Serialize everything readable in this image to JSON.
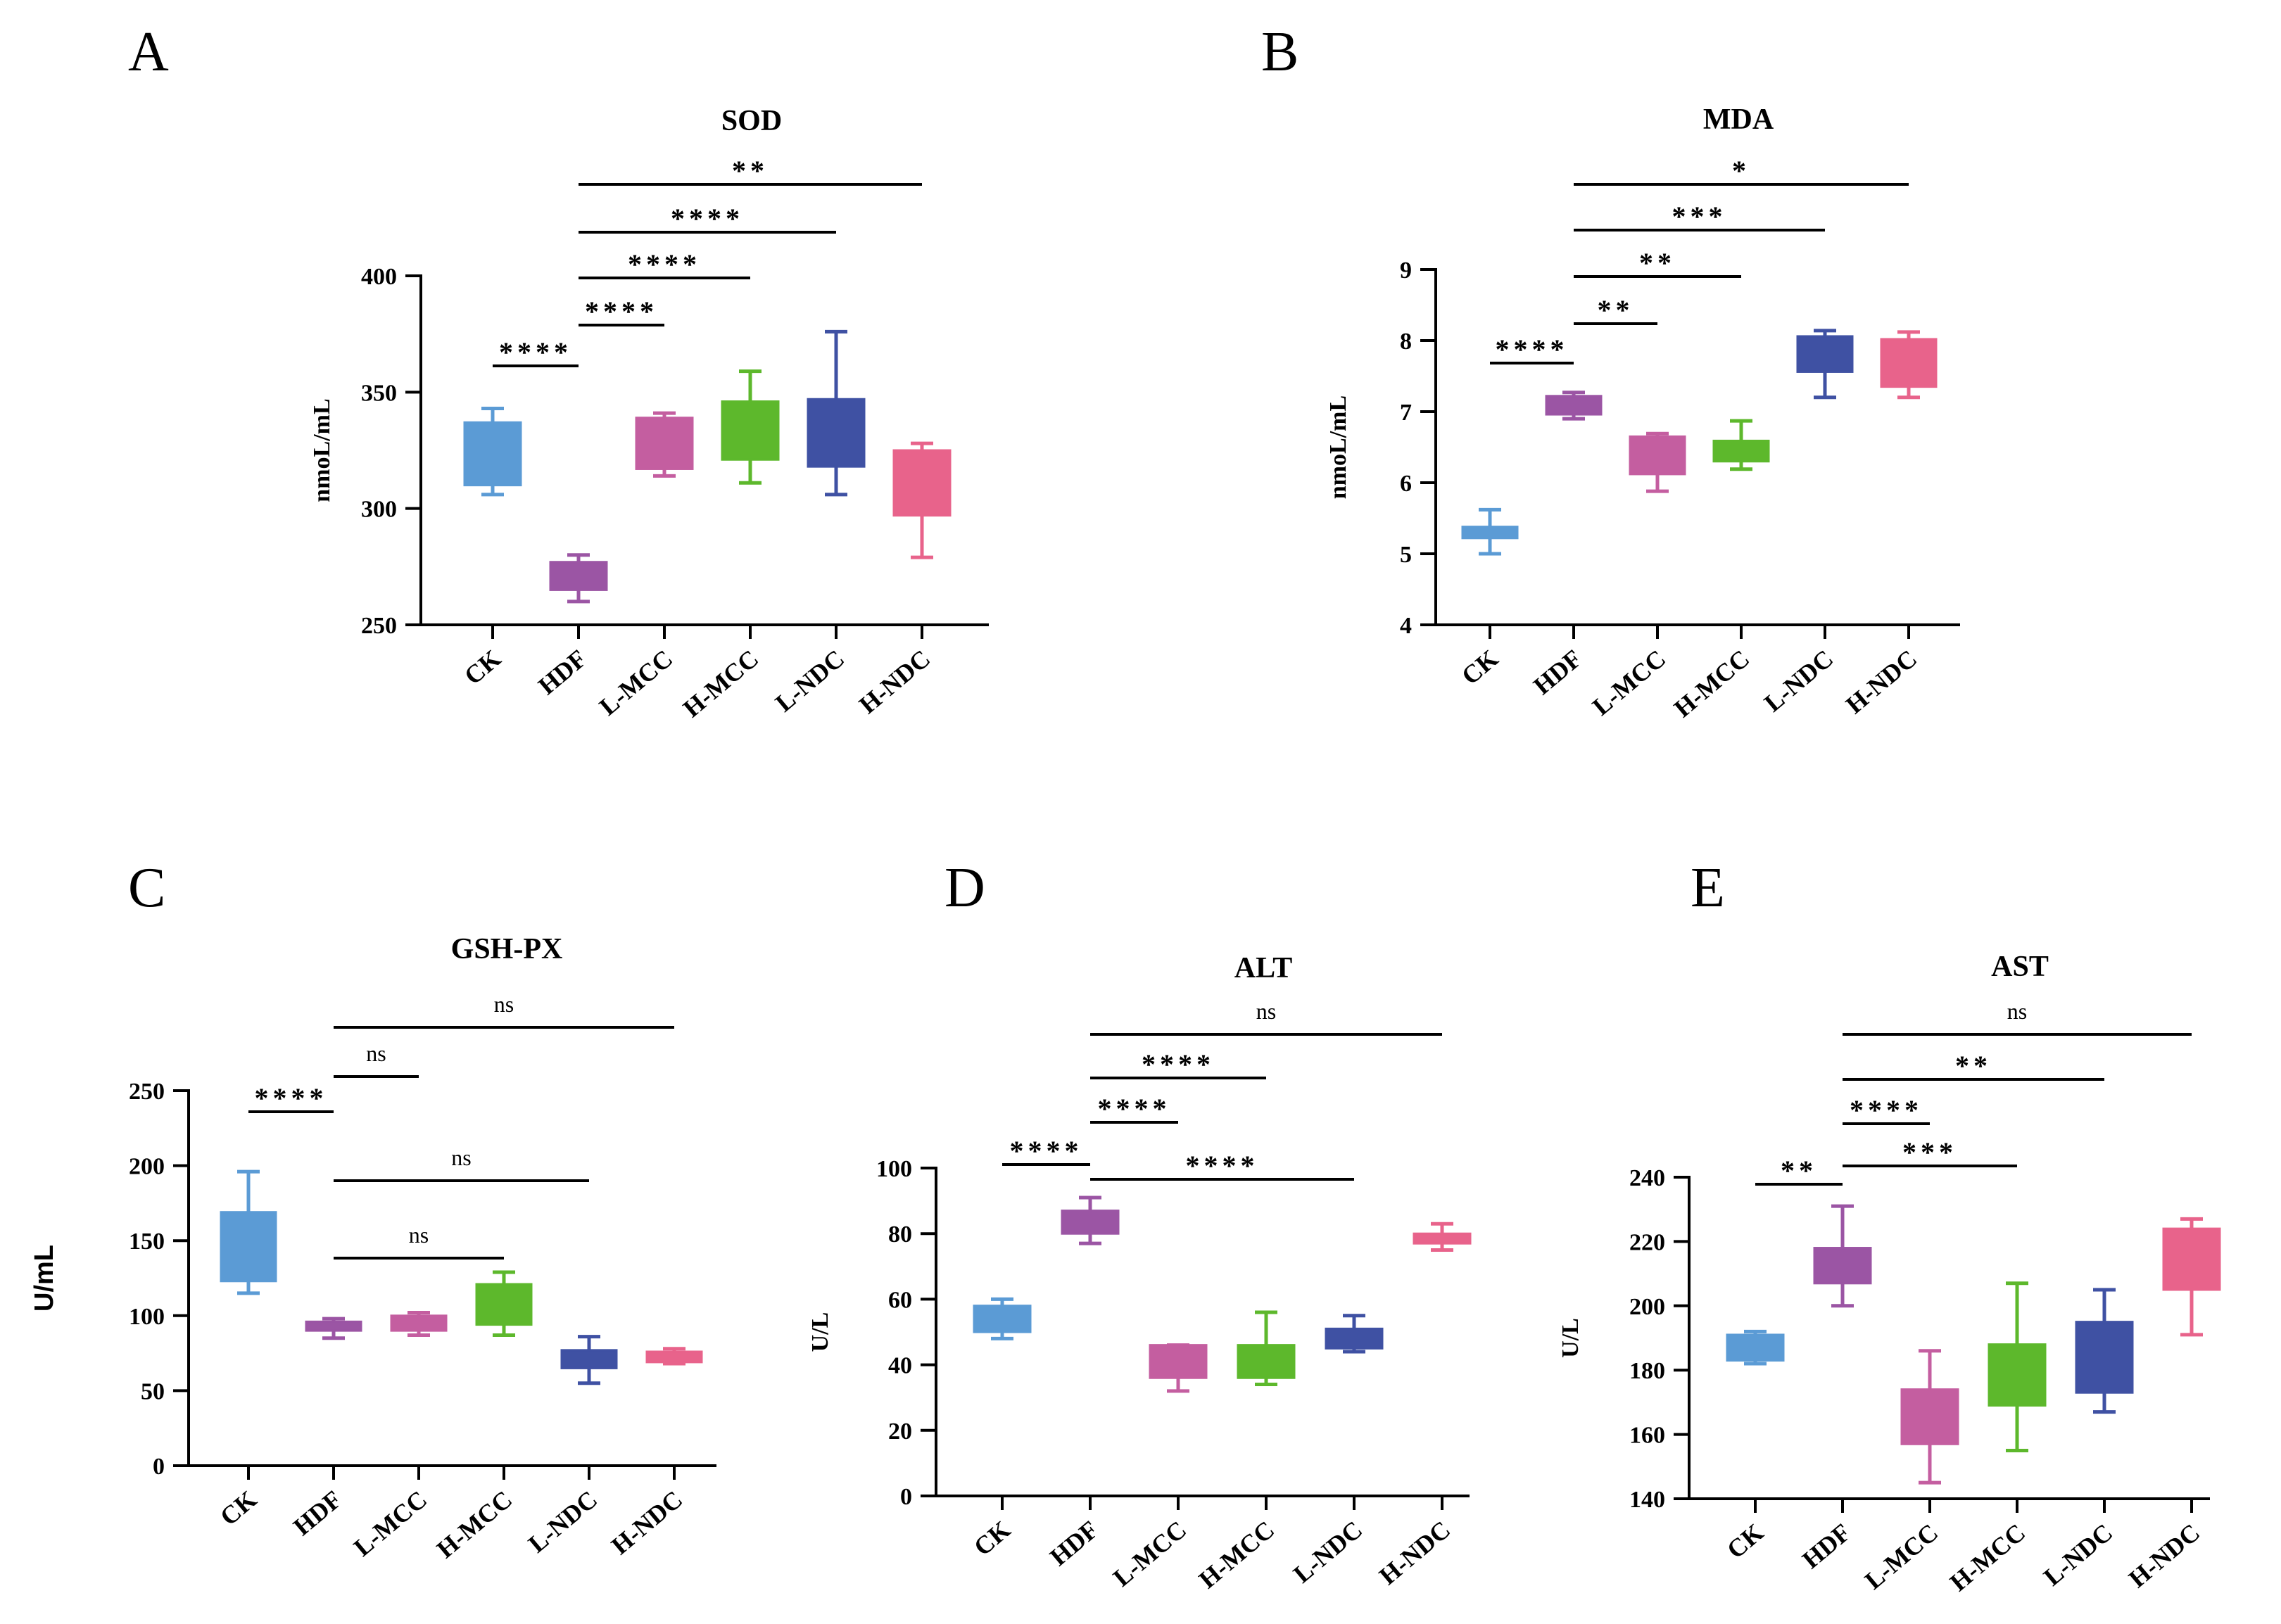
{
  "chart_data": [
    {
      "panel": "A",
      "type": "box",
      "title": "SOD",
      "ylabel": "nmoL/mL",
      "xlabel": "",
      "ylim": [
        250,
        400
      ],
      "yticks": [
        250,
        300,
        350,
        400
      ],
      "categories": [
        "CK",
        "HDF",
        "L-MCC",
        "H-MCC",
        "L-NDC",
        "H-NDC"
      ],
      "boxes": [
        {
          "min": 306,
          "q1": 310,
          "q3": 337,
          "max": 343
        },
        {
          "min": 260,
          "q1": 265,
          "q3": 277,
          "max": 280
        },
        {
          "min": 314,
          "q1": 317,
          "q3": 339,
          "max": 341
        },
        {
          "min": 311,
          "q1": 321,
          "q3": 346,
          "max": 359
        },
        {
          "min": 306,
          "q1": 318,
          "q3": 347,
          "max": 376
        },
        {
          "min": 279,
          "q1": 297,
          "q3": 325,
          "max": 328
        }
      ],
      "comparisons": [
        {
          "from": 0,
          "to": 1,
          "label": "****"
        },
        {
          "from": 1,
          "to": 2,
          "label": "****"
        },
        {
          "from": 1,
          "to": 3,
          "label": "****"
        },
        {
          "from": 1,
          "to": 4,
          "label": "****"
        },
        {
          "from": 1,
          "to": 5,
          "label": "**"
        }
      ]
    },
    {
      "panel": "B",
      "type": "box",
      "title": "MDA",
      "ylabel": "nmoL/mL",
      "xlabel": "",
      "ylim": [
        4,
        9
      ],
      "yticks": [
        4,
        5,
        6,
        7,
        8,
        9
      ],
      "categories": [
        "CK",
        "HDF",
        "L-MCC",
        "H-MCC",
        "L-NDC",
        "H-NDC"
      ],
      "boxes": [
        {
          "min": 5.0,
          "q1": 5.22,
          "q3": 5.38,
          "max": 5.62
        },
        {
          "min": 6.9,
          "q1": 6.96,
          "q3": 7.22,
          "max": 7.27
        },
        {
          "min": 5.88,
          "q1": 6.12,
          "q3": 6.65,
          "max": 6.69
        },
        {
          "min": 6.19,
          "q1": 6.3,
          "q3": 6.59,
          "max": 6.87
        },
        {
          "min": 7.2,
          "q1": 7.56,
          "q3": 8.06,
          "max": 8.14
        },
        {
          "min": 7.2,
          "q1": 7.35,
          "q3": 8.02,
          "max": 8.12
        }
      ],
      "comparisons": [
        {
          "from": 0,
          "to": 1,
          "label": "****"
        },
        {
          "from": 1,
          "to": 2,
          "label": "**"
        },
        {
          "from": 1,
          "to": 3,
          "label": "**"
        },
        {
          "from": 1,
          "to": 4,
          "label": "***"
        },
        {
          "from": 1,
          "to": 5,
          "label": "*"
        }
      ]
    },
    {
      "panel": "C",
      "type": "box",
      "title": "GSH-PX",
      "ylabel": "U/mL",
      "xlabel": "",
      "ylim": [
        0,
        250
      ],
      "yticks": [
        0,
        50,
        100,
        150,
        200,
        250
      ],
      "categories": [
        "CK",
        "HDF",
        "L-MCC",
        "H-MCC",
        "L-NDC",
        "H-NDC"
      ],
      "boxes": [
        {
          "min": 115,
          "q1": 123,
          "q3": 169,
          "max": 196
        },
        {
          "min": 85,
          "q1": 90,
          "q3": 96,
          "max": 98
        },
        {
          "min": 87,
          "q1": 90,
          "q3": 100,
          "max": 102
        },
        {
          "min": 87,
          "q1": 94,
          "q3": 121,
          "max": 129
        },
        {
          "min": 55,
          "q1": 65,
          "q3": 77,
          "max": 86
        },
        {
          "min": 68,
          "q1": 69,
          "q3": 76,
          "max": 78
        }
      ],
      "comparisons": [
        {
          "from": 0,
          "to": 1,
          "label": "****"
        },
        {
          "from": 1,
          "to": 2,
          "label": "ns"
        },
        {
          "from": 1,
          "to": 5,
          "label": "ns"
        },
        {
          "from": 1,
          "to": 4,
          "label": "ns"
        },
        {
          "from": 1,
          "to": 3,
          "label": "ns"
        }
      ]
    },
    {
      "panel": "D",
      "type": "box",
      "title": "ALT",
      "ylabel": "U/L",
      "xlabel": "",
      "ylim": [
        0,
        100
      ],
      "yticks": [
        0,
        20,
        40,
        60,
        80,
        100
      ],
      "categories": [
        "CK",
        "HDF",
        "L-MCC",
        "H-MCC",
        "L-NDC",
        "H-NDC"
      ],
      "boxes": [
        {
          "min": 48,
          "q1": 50,
          "q3": 58,
          "max": 60
        },
        {
          "min": 77,
          "q1": 80,
          "q3": 87,
          "max": 91
        },
        {
          "min": 32,
          "q1": 36,
          "q3": 46,
          "max": 46
        },
        {
          "min": 34,
          "q1": 36,
          "q3": 46,
          "max": 56
        },
        {
          "min": 44,
          "q1": 45,
          "q3": 51,
          "max": 55
        },
        {
          "min": 75,
          "q1": 77,
          "q3": 80,
          "max": 83
        }
      ],
      "comparisons": [
        {
          "from": 0,
          "to": 1,
          "label": "****"
        },
        {
          "from": 1,
          "to": 2,
          "label": "****"
        },
        {
          "from": 1,
          "to": 4,
          "label": "****"
        },
        {
          "from": 1,
          "to": 3,
          "label": "****"
        },
        {
          "from": 1,
          "to": 5,
          "label": "ns"
        }
      ]
    },
    {
      "panel": "E",
      "type": "box",
      "title": "AST",
      "ylabel": "U/L",
      "xlabel": "",
      "ylim": [
        140,
        240
      ],
      "yticks": [
        140,
        160,
        180,
        200,
        220,
        240
      ],
      "categories": [
        "CK",
        "HDF",
        "L-MCC",
        "H-MCC",
        "L-NDC",
        "H-NDC"
      ],
      "boxes": [
        {
          "min": 182,
          "q1": 183,
          "q3": 191,
          "max": 192
        },
        {
          "min": 200,
          "q1": 207,
          "q3": 218,
          "max": 231
        },
        {
          "min": 145,
          "q1": 157,
          "q3": 174,
          "max": 186
        },
        {
          "min": 155,
          "q1": 169,
          "q3": 188,
          "max": 207
        },
        {
          "min": 167,
          "q1": 173,
          "q3": 195,
          "max": 205
        },
        {
          "min": 191,
          "q1": 205,
          "q3": 224,
          "max": 227
        }
      ],
      "comparisons": [
        {
          "from": 0,
          "to": 1,
          "label": "**"
        },
        {
          "from": 1,
          "to": 2,
          "label": "****"
        },
        {
          "from": 1,
          "to": 3,
          "label": "***"
        },
        {
          "from": 1,
          "to": 4,
          "label": "**"
        },
        {
          "from": 1,
          "to": 5,
          "label": "ns"
        }
      ]
    }
  ],
  "colors": {
    "CK": "#5b9bd5",
    "HDF": "#9b55a4",
    "L-MCC": "#c45ea0",
    "H-MCC": "#5db82c",
    "L-NDC": "#3f51a3",
    "H-NDC": "#e8638b",
    "ink": "#000000"
  }
}
